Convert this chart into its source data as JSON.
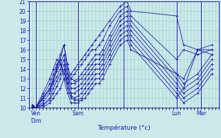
{
  "xlabel": "Température (°c)",
  "xlim": [
    0,
    54
  ],
  "ylim": [
    10,
    21
  ],
  "yticks": [
    10,
    11,
    12,
    13,
    14,
    15,
    16,
    17,
    18,
    19,
    20,
    21
  ],
  "background_color": "#cce8e8",
  "grid_color": "#99cccc",
  "line_color": "#1a1aaa",
  "x_positions": [
    1,
    2,
    4,
    6,
    7,
    8,
    9,
    10,
    11,
    12,
    13,
    14,
    15,
    16,
    17,
    18,
    19,
    20,
    21,
    23,
    26,
    28,
    29,
    42,
    44,
    48,
    52
  ],
  "series": [
    [
      10.3,
      10.0,
      11.5,
      13.0,
      14.0,
      15.0,
      14.5,
      13.5,
      13.0,
      13.5,
      14.0,
      14.5,
      15.0,
      15.5,
      16.0,
      16.5,
      17.0,
      17.5,
      18.0,
      19.0,
      20.5,
      21.0,
      20.0,
      19.5,
      16.5,
      16.0,
      16.5
    ],
    [
      10.2,
      10.0,
      11.2,
      12.5,
      13.5,
      14.5,
      15.0,
      13.0,
      12.5,
      13.0,
      13.5,
      14.0,
      14.5,
      15.0,
      15.5,
      16.0,
      16.0,
      16.5,
      17.0,
      18.5,
      20.0,
      20.5,
      19.5,
      15.0,
      16.0,
      15.5,
      16.0
    ],
    [
      10.1,
      10.0,
      11.0,
      12.0,
      13.0,
      14.2,
      15.5,
      16.5,
      14.5,
      13.0,
      12.8,
      13.0,
      13.5,
      14.0,
      14.5,
      15.0,
      15.5,
      15.5,
      16.0,
      17.5,
      19.5,
      20.0,
      19.0,
      13.5,
      12.5,
      13.5,
      15.5
    ],
    [
      10.1,
      10.0,
      11.0,
      12.0,
      13.0,
      14.0,
      15.0,
      16.5,
      14.0,
      12.5,
      12.5,
      12.8,
      13.0,
      13.5,
      14.0,
      14.5,
      15.0,
      15.0,
      15.5,
      17.0,
      19.0,
      19.5,
      18.5,
      13.0,
      12.0,
      13.0,
      15.0
    ],
    [
      10.1,
      10.0,
      10.8,
      11.8,
      12.8,
      13.8,
      14.5,
      15.5,
      13.5,
      12.0,
      12.0,
      12.2,
      12.5,
      13.0,
      13.5,
      14.0,
      14.5,
      14.5,
      15.0,
      16.5,
      18.5,
      19.0,
      18.0,
      12.5,
      11.5,
      12.5,
      14.5
    ],
    [
      10.0,
      10.0,
      10.5,
      11.5,
      12.5,
      13.2,
      14.0,
      15.0,
      13.0,
      11.5,
      11.5,
      11.8,
      12.0,
      12.5,
      13.0,
      13.5,
      14.0,
      14.0,
      14.5,
      16.0,
      18.0,
      18.5,
      17.5,
      12.0,
      11.0,
      12.0,
      14.0
    ],
    [
      10.0,
      10.0,
      10.3,
      11.0,
      12.0,
      12.8,
      13.5,
      14.5,
      12.5,
      11.2,
      11.0,
      11.2,
      11.5,
      12.0,
      12.5,
      13.0,
      13.5,
      13.5,
      14.0,
      15.5,
      17.5,
      18.0,
      17.0,
      11.5,
      10.5,
      11.5,
      13.5
    ],
    [
      10.0,
      10.0,
      10.2,
      10.8,
      11.5,
      12.2,
      13.0,
      14.0,
      12.0,
      11.0,
      10.8,
      10.8,
      11.0,
      11.5,
      12.0,
      12.5,
      13.0,
      13.0,
      13.5,
      15.0,
      17.0,
      17.5,
      16.5,
      11.0,
      12.0,
      16.0,
      16.0
    ],
    [
      10.0,
      10.0,
      10.0,
      10.5,
      11.0,
      11.5,
      12.0,
      13.0,
      11.5,
      10.5,
      10.5,
      10.5,
      10.8,
      11.0,
      11.5,
      12.0,
      12.5,
      12.5,
      13.0,
      14.5,
      16.5,
      17.0,
      16.0,
      13.5,
      13.0,
      16.0,
      15.5
    ]
  ],
  "vline_positions": [
    2,
    14,
    27,
    42,
    49
  ],
  "xtick_positions": [
    2,
    14,
    27,
    42,
    49
  ],
  "xtick_labels": [
    "Ven\nDim",
    "Sam",
    "",
    "Lun",
    "Mar"
  ]
}
